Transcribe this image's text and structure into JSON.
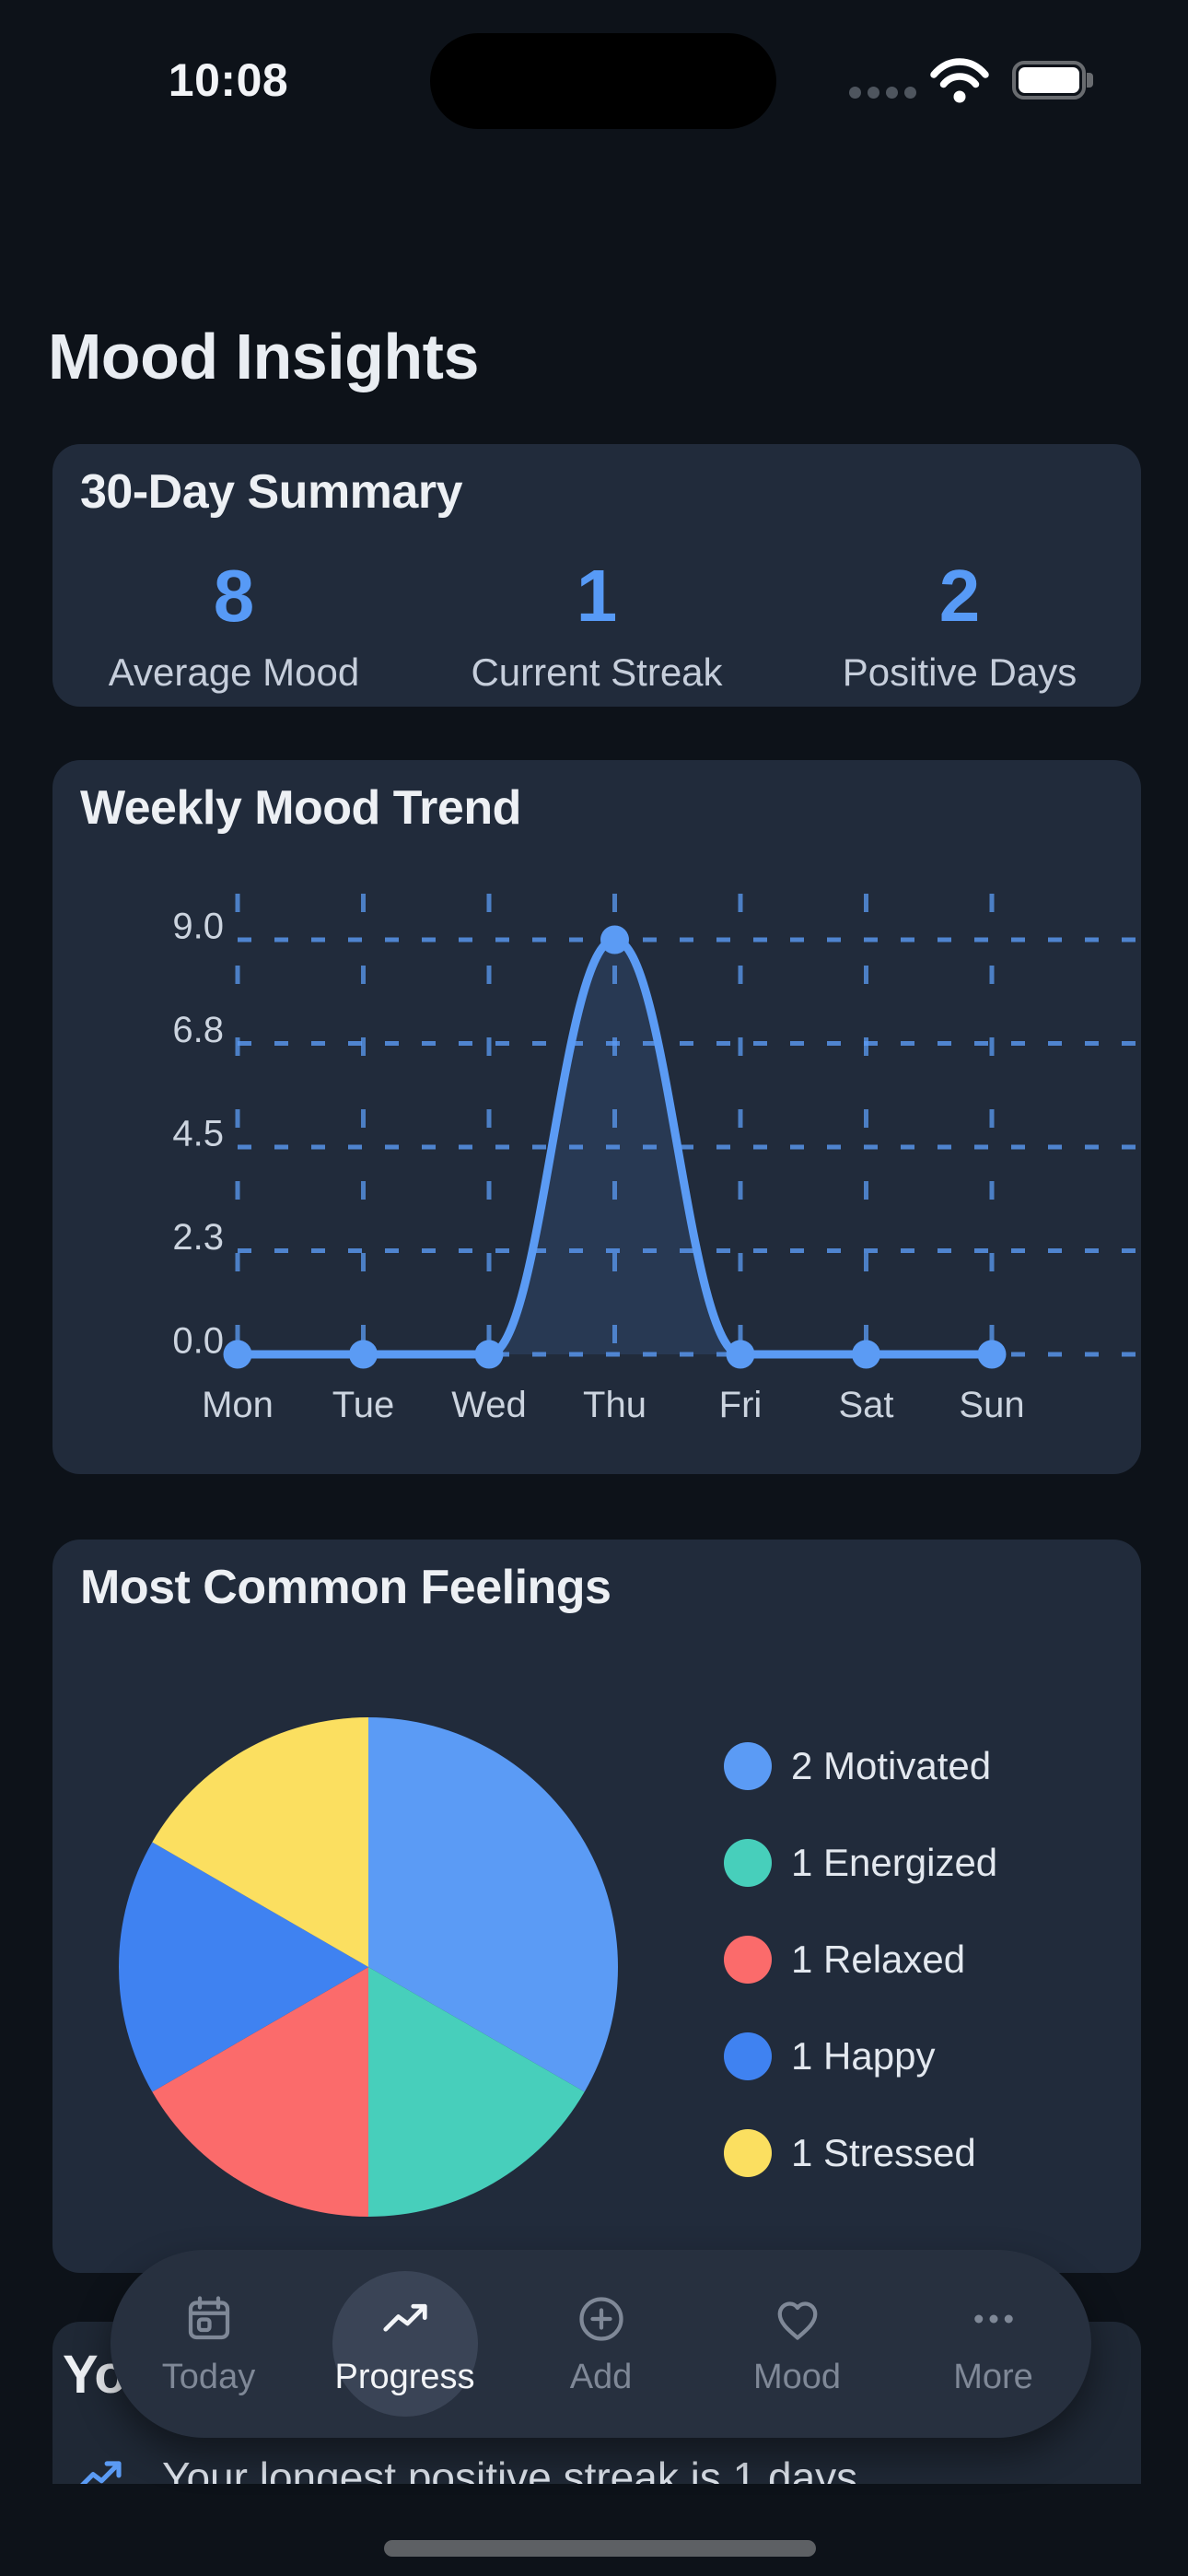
{
  "status_bar": {
    "time": "10:08",
    "icons": [
      "cellular-dots-icon",
      "wifi-icon",
      "battery-icon"
    ]
  },
  "header": {
    "title": "Mood Insights"
  },
  "summary_card": {
    "title": "30-Day Summary",
    "stats": [
      {
        "value": "8",
        "label": "Average Mood"
      },
      {
        "value": "1",
        "label": "Current Streak"
      },
      {
        "value": "2",
        "label": "Positive Days"
      }
    ],
    "accent_color": "#579af6"
  },
  "trend_card": {
    "title": "Weekly Mood Trend"
  },
  "feelings_card": {
    "title": "Most Common Feelings",
    "legend": [
      {
        "count": "2",
        "label": "Motivated",
        "color": "#5b9bf5"
      },
      {
        "count": "1",
        "label": "Energized",
        "color": "#47cfbb"
      },
      {
        "count": "1",
        "label": "Relaxed",
        "color": "#fb6b6b"
      },
      {
        "count": "1",
        "label": "Happy",
        "color": "#3f82f1"
      },
      {
        "count": "1",
        "label": "Stressed",
        "color": "#fbdf60"
      }
    ]
  },
  "bottom_card": {
    "visible_heading": "Yo",
    "insight_text": "Your longest positive streak is 1 days",
    "insight_icon": "trending-up-icon"
  },
  "tab_bar": {
    "active": "Progress",
    "items": [
      {
        "label": "Today",
        "icon": "calendar-icon"
      },
      {
        "label": "Progress",
        "icon": "trending-up-icon"
      },
      {
        "label": "Add",
        "icon": "plus-circle-icon"
      },
      {
        "label": "Mood",
        "icon": "heart-icon"
      },
      {
        "label": "More",
        "icon": "ellipsis-icon"
      }
    ]
  },
  "chart_data": [
    {
      "type": "line",
      "title": "Weekly Mood Trend",
      "categories": [
        "Mon",
        "Tue",
        "Wed",
        "Thu",
        "Fri",
        "Sat",
        "Sun"
      ],
      "series": [
        {
          "name": "Mood",
          "values": [
            0,
            0,
            0,
            9,
            0,
            0,
            0
          ]
        }
      ],
      "ylim": [
        0,
        9
      ],
      "ytick_labels": [
        "9.0",
        "6.8",
        "4.5",
        "2.3",
        "0.0"
      ],
      "grid": "dashed",
      "grid_color": "#5b9bf4",
      "line_color": "#5b9bf4",
      "point_color": "#5b9bf4",
      "fill_color": "rgba(91,155,244,0.13)",
      "legend_position": "none"
    },
    {
      "type": "pie",
      "title": "Most Common Feelings",
      "labels": [
        "Motivated",
        "Energized",
        "Relaxed",
        "Happy",
        "Stressed"
      ],
      "values": [
        2,
        1,
        1,
        1,
        1
      ],
      "colors": [
        "#5b9bf5",
        "#47cfbb",
        "#fb6b6b",
        "#3f82f1",
        "#fbdf60"
      ],
      "start_angle_deg": -90,
      "direction": "clockwise",
      "legend_position": "right"
    }
  ]
}
